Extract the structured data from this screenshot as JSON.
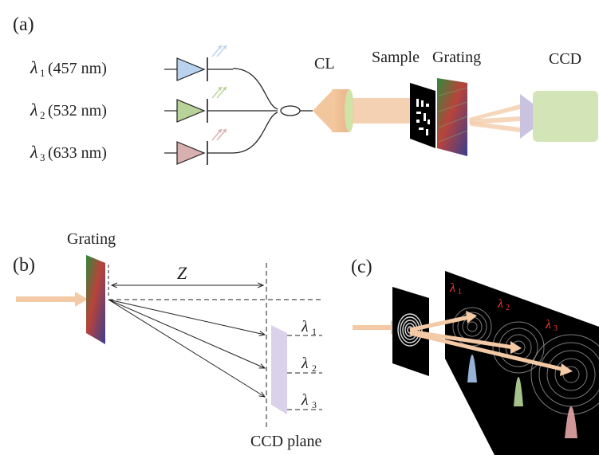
{
  "panel_a": {
    "label": "(a)",
    "lasers": [
      {
        "symbol": "λ",
        "sub": "1",
        "wavelength": "(457 nm)",
        "color": "#b9d3ee"
      },
      {
        "symbol": "λ",
        "sub": "2",
        "wavelength": "(532 nm)",
        "color": "#b8d39a"
      },
      {
        "symbol": "λ",
        "sub": "3",
        "wavelength": "(633 nm)",
        "color": "#d9b0b0"
      }
    ],
    "lens_label": "CL",
    "sample_label": "Sample",
    "grating_label": "Grating",
    "detector_label": "CCD"
  },
  "panel_b": {
    "label": "(b)",
    "grating_label": "Grating",
    "distance_label": "Z",
    "wavelengths": [
      {
        "symbol": "λ",
        "sub": "1"
      },
      {
        "symbol": "λ",
        "sub": "2"
      },
      {
        "symbol": "λ",
        "sub": "3"
      }
    ],
    "plane_label": "CCD plane"
  },
  "panel_c": {
    "label": "(c)",
    "spot_labels": [
      {
        "symbol": "λ",
        "sub": "1"
      },
      {
        "symbol": "λ",
        "sub": "2"
      },
      {
        "symbol": "λ",
        "sub": "3"
      }
    ]
  },
  "colors": {
    "beam": "#f3c9a6",
    "lens": "#f2c79e",
    "lens_green": "#cfe3a9",
    "ccd_body": "#d3e5b6",
    "ccd_lens": "#c9c3e0",
    "ccd_plane": "#d9d2ea",
    "sample_bg": "#000000"
  }
}
